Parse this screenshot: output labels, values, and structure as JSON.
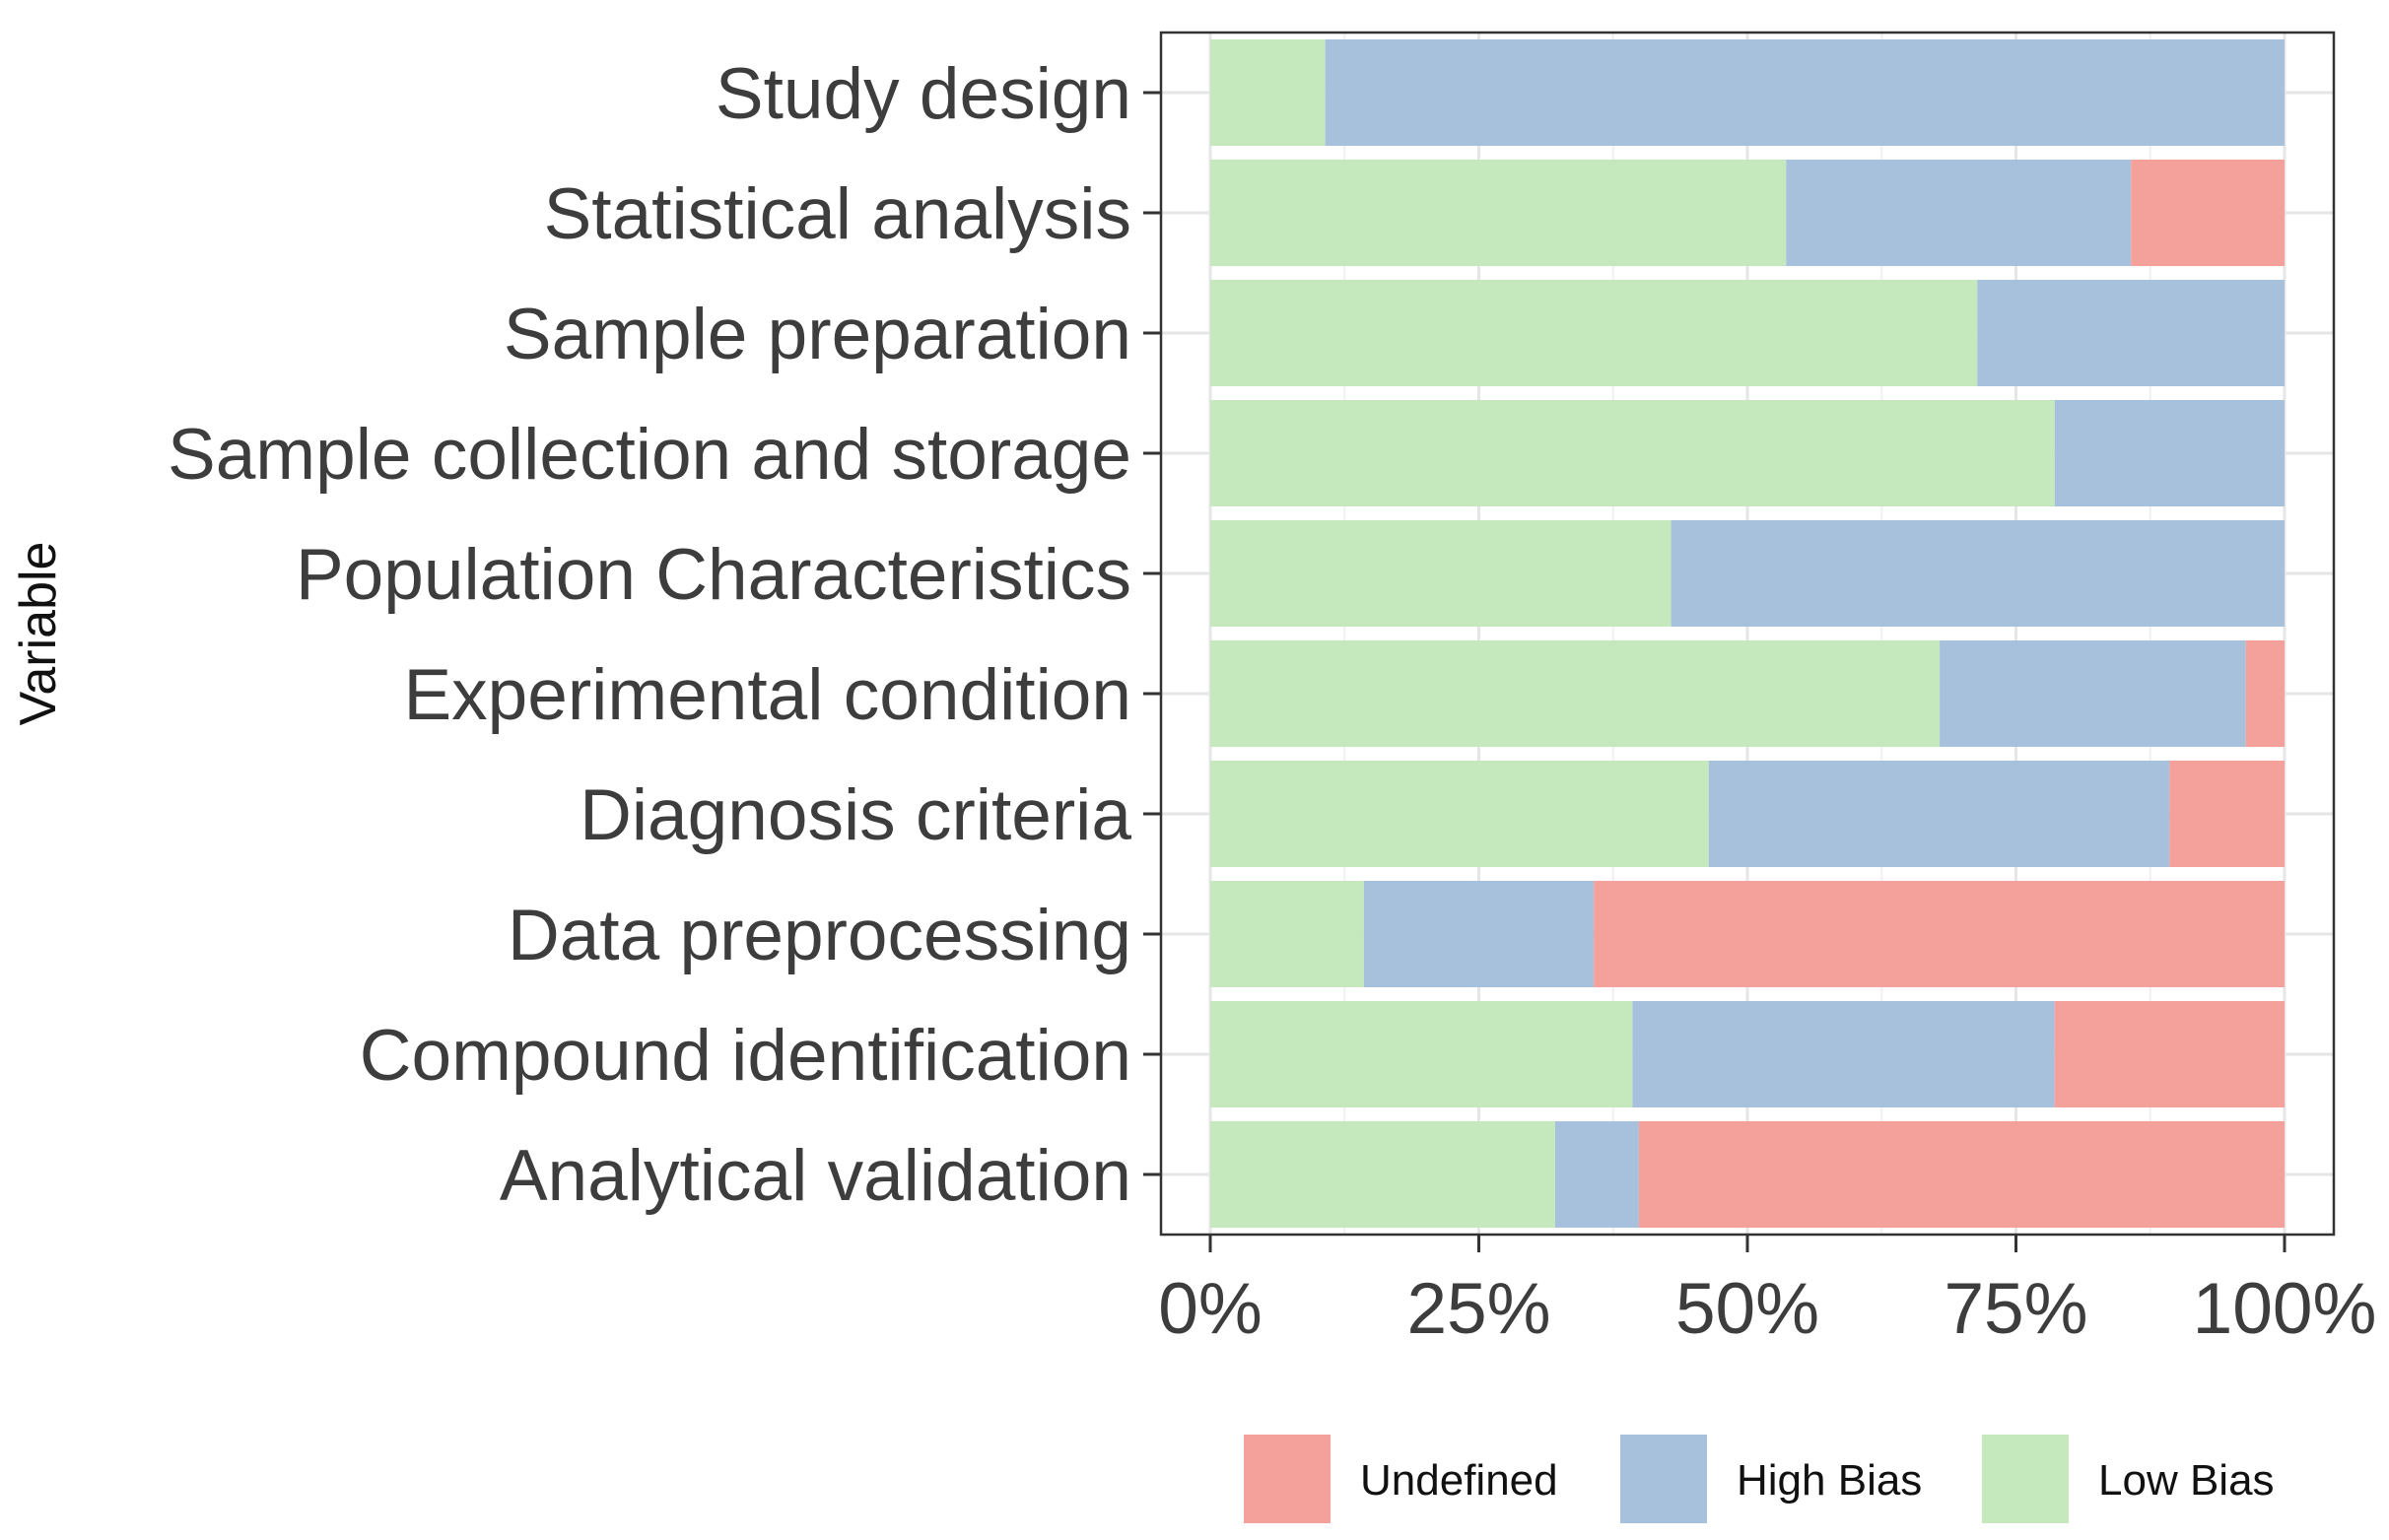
{
  "chart_data": {
    "type": "bar",
    "orientation": "horizontal",
    "stacked": true,
    "title": "",
    "xlabel": "",
    "ylabel": "Variable",
    "xlim": [
      0,
      100
    ],
    "x_ticks": [
      0,
      25,
      50,
      75,
      100
    ],
    "x_tick_labels": [
      "0%",
      "25%",
      "50%",
      "75%",
      "100%"
    ],
    "grid": true,
    "legend_position": "bottom",
    "categories": [
      "Study design",
      "Statistical analysis",
      "Sample preparation",
      "Sample collection and storage",
      "Population Characteristics",
      "Experimental condition",
      "Diagnosis criteria",
      "Data preprocessing",
      "Compound identification",
      "Analytical validation"
    ],
    "series": [
      {
        "name": "Low Bias",
        "color": "#c5e8bd",
        "values": [
          10.7,
          53.6,
          71.4,
          78.6,
          42.9,
          67.9,
          46.4,
          14.3,
          39.3,
          32.1
        ]
      },
      {
        "name": "High Bias",
        "color": "#a7c1dc",
        "values": [
          89.3,
          32.1,
          28.6,
          21.4,
          57.1,
          28.5,
          42.9,
          21.4,
          39.3,
          7.8
        ]
      },
      {
        "name": "Undefined",
        "color": "#f5a19b",
        "values": [
          0,
          14.3,
          0,
          0,
          0,
          3.6,
          10.7,
          64.3,
          21.4,
          60.1
        ]
      }
    ],
    "legend": [
      "Undefined",
      "High Bias",
      "Low Bias"
    ]
  }
}
